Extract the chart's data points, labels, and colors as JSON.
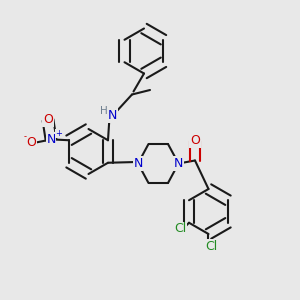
{
  "bg_color": "#e8e8e8",
  "bond_color": "#1a1a1a",
  "bond_lw": 1.5,
  "atom_colors": {
    "N": "#0000cc",
    "O": "#cc0000",
    "Cl": "#228B22",
    "H": "#708090",
    "C": "#1a1a1a"
  },
  "font_size_atom": 9,
  "font_size_small": 7.5
}
